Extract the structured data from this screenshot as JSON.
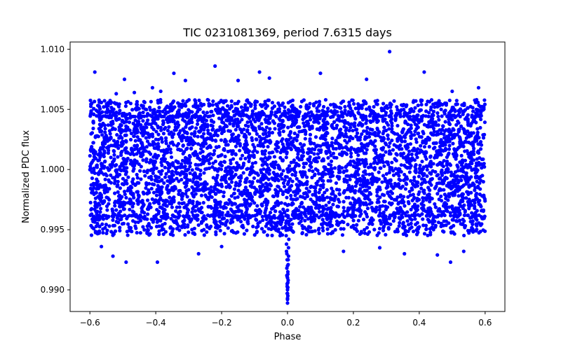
{
  "chart_data": {
    "type": "scatter",
    "title": "TIC 0231081369, period 7.6315 days",
    "xlabel": "Phase",
    "ylabel": "Normalized PDC flux",
    "xlim": [
      -0.66,
      0.66
    ],
    "ylim": [
      0.9882,
      1.0106
    ],
    "grid": false,
    "marker_color": "#0000ff",
    "xticks": [
      -0.6,
      -0.4,
      -0.2,
      0.0,
      0.2,
      0.4,
      0.6
    ],
    "xtick_labels": [
      "−0.6",
      "−0.4",
      "−0.2",
      "0.0",
      "0.2",
      "0.4",
      "0.6"
    ],
    "yticks": [
      0.99,
      0.995,
      1.0,
      1.005,
      1.01
    ],
    "ytick_labels": [
      "0.990",
      "0.995",
      "1.000",
      "1.005",
      "1.010"
    ],
    "series": [
      {
        "name": "band_core",
        "note": "dense baseline band of points spanning the full phase range",
        "x_range": [
          -0.6,
          0.6
        ],
        "y_range": [
          0.99615,
          1.00445
        ]
      },
      {
        "name": "band_edges",
        "note": "scattered points at the upper and lower fringes of the band",
        "x_range": [
          -0.6,
          0.6
        ],
        "y_range_lower": [
          0.9945,
          0.9962
        ],
        "y_range_upper": [
          1.0044,
          1.0058
        ]
      },
      {
        "name": "outliers",
        "x": [
          -0.585,
          -0.52,
          -0.495,
          -0.465,
          -0.41,
          -0.385,
          -0.345,
          -0.31,
          -0.22,
          -0.15,
          -0.085,
          -0.055,
          0.1,
          0.24,
          0.31,
          0.415,
          0.5,
          0.58,
          -0.565,
          -0.53,
          -0.49,
          -0.395,
          -0.27,
          -0.2,
          0.17,
          0.28,
          0.355,
          0.455,
          0.495,
          0.535
        ],
        "y": [
          1.0081,
          1.0063,
          1.0075,
          1.0064,
          1.0068,
          1.0065,
          1.008,
          1.0074,
          1.0086,
          1.0074,
          1.0081,
          1.0076,
          1.008,
          1.0075,
          1.0098,
          1.0081,
          1.0065,
          1.0068,
          0.9936,
          0.9928,
          0.9923,
          0.9923,
          0.993,
          0.9936,
          0.9932,
          0.9935,
          0.993,
          0.9929,
          0.9923,
          0.9932
        ]
      },
      {
        "name": "transit_dip",
        "x": [
          -0.004,
          -0.003,
          -0.002,
          -0.001,
          0.0,
          0.001,
          0.002,
          0.003,
          0.004,
          -0.002,
          0.0,
          0.002,
          -0.001,
          0.001,
          0.0,
          -0.001,
          0.001,
          0.0,
          0.0,
          -0.002,
          0.002,
          -0.003,
          0.003,
          -0.001,
          0.001,
          0.0,
          0.0,
          -0.001,
          0.001,
          0.0
        ],
        "y": [
          0.9945,
          0.9938,
          0.993,
          0.9925,
          0.992,
          0.9915,
          0.9925,
          0.9935,
          0.9942,
          0.9912,
          0.991,
          0.9908,
          0.9905,
          0.9902,
          0.99,
          0.9897,
          0.9895,
          0.9892,
          0.9889,
          0.9918,
          0.9921,
          0.9932,
          0.9928,
          0.9903,
          0.9906,
          0.9897,
          0.9893,
          0.9911,
          0.9913,
          0.9902
        ]
      }
    ]
  }
}
